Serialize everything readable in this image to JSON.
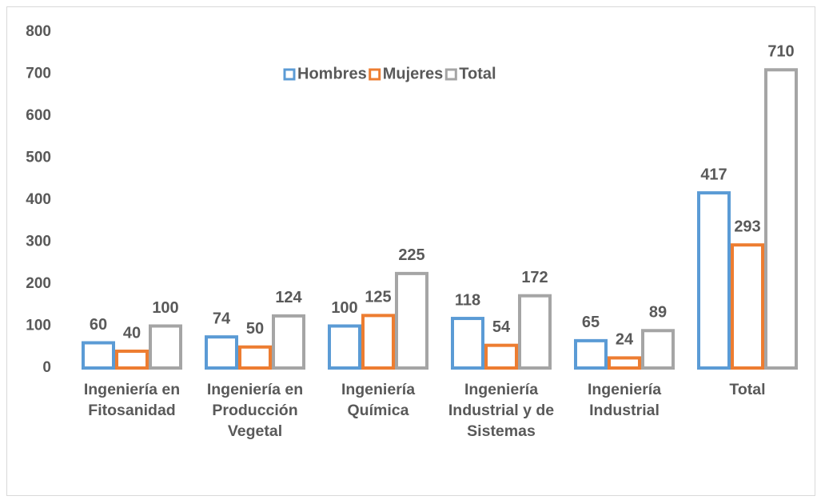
{
  "chart_data": {
    "type": "bar",
    "categories": [
      "Ingeniería en Fitosanidad",
      "Ingeniería en Producción Vegetal",
      "Ingeniería Química",
      "Ingeniería Industrial y de Sistemas",
      "Ingeniería Industrial",
      "Total"
    ],
    "series": [
      {
        "name": "Hombres",
        "color": "#5b9bd5",
        "values": [
          60,
          74,
          100,
          118,
          65,
          417
        ]
      },
      {
        "name": "Mujeres",
        "color": "#ed7d31",
        "values": [
          40,
          50,
          125,
          54,
          24,
          293
        ]
      },
      {
        "name": "Total",
        "color": "#a5a5a5",
        "values": [
          100,
          124,
          225,
          172,
          89,
          710
        ]
      }
    ],
    "ylim": [
      0,
      800
    ],
    "yticks": [
      0,
      100,
      200,
      300,
      400,
      500,
      600,
      700,
      800
    ],
    "grid": false,
    "legend": "top"
  }
}
